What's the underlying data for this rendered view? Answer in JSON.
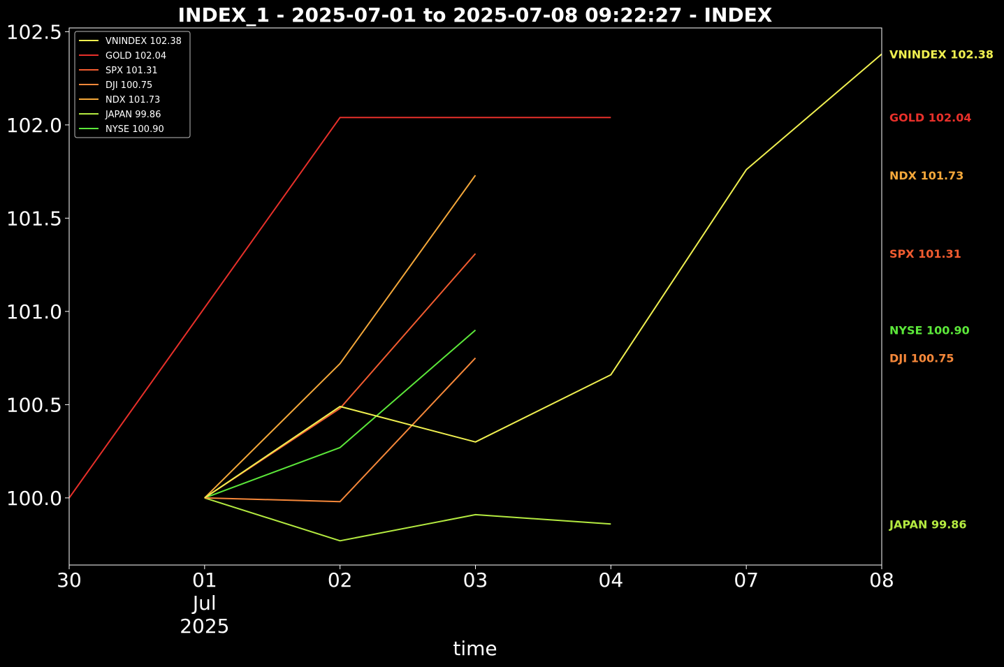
{
  "chart_data": {
    "type": "line",
    "title": "INDEX_1 - 2025-07-01 to 2025-07-08 09:22:27 - INDEX",
    "xlabel": "time",
    "ylabel": "",
    "x": [
      "2025-06-30",
      "2025-07-01",
      "2025-07-02",
      "2025-07-03",
      "2025-07-04",
      "2025-07-07",
      "2025-07-08"
    ],
    "x_tick_labels": [
      {
        "lines": [
          "30"
        ]
      },
      {
        "lines": [
          "01",
          "Jul",
          "2025"
        ]
      },
      {
        "lines": [
          "02"
        ]
      },
      {
        "lines": [
          "03"
        ]
      },
      {
        "lines": [
          "04"
        ]
      },
      {
        "lines": [
          "07"
        ]
      },
      {
        "lines": [
          "08"
        ]
      }
    ],
    "ylim": [
      99.64,
      102.52
    ],
    "y_ticks": [
      100.0,
      100.5,
      101.0,
      101.5,
      102.0,
      102.5
    ],
    "y_tick_labels": [
      "100.0",
      "100.5",
      "101.0",
      "101.5",
      "102.0",
      "102.5"
    ],
    "grid": false,
    "legend_placement": "top-left",
    "background": "#000000",
    "series": [
      {
        "name": "VNINDEX",
        "legend": "VNINDEX 102.38",
        "end_label": "VNINDEX 102.38",
        "color": "#f0f050",
        "values": [
          null,
          100.0,
          100.49,
          100.3,
          100.66,
          101.76,
          102.38
        ]
      },
      {
        "name": "GOLD",
        "legend": "GOLD 102.04",
        "end_label": "GOLD 102.04",
        "color": "#e8302a",
        "values": [
          100.0,
          null,
          102.04,
          null,
          102.04,
          null,
          null
        ]
      },
      {
        "name": "SPX",
        "legend": "SPX 101.31",
        "end_label": "SPX 101.31",
        "color": "#f25c30",
        "values": [
          null,
          100.0,
          100.48,
          101.31,
          null,
          null,
          null
        ]
      },
      {
        "name": "DJI",
        "legend": "DJI 100.75",
        "end_label": "DJI 100.75",
        "color": "#f6883a",
        "values": [
          null,
          100.0,
          99.98,
          100.75,
          null,
          null,
          null
        ]
      },
      {
        "name": "NDX",
        "legend": "NDX 101.73",
        "end_label": "NDX 101.73",
        "color": "#f5a83a",
        "values": [
          null,
          100.0,
          100.72,
          101.73,
          null,
          null,
          null
        ]
      },
      {
        "name": "JAPAN",
        "legend": "JAPAN 99.86",
        "end_label": "JAPAN 99.86",
        "color": "#b4ea40",
        "values": [
          null,
          100.0,
          99.77,
          99.91,
          99.86,
          null,
          null
        ]
      },
      {
        "name": "NYSE",
        "legend": "NYSE 100.90",
        "end_label": "NYSE 100.90",
        "color": "#5ce83a",
        "values": [
          null,
          100.0,
          100.27,
          100.9,
          null,
          null,
          null
        ]
      }
    ],
    "end_label_order": [
      "VNINDEX",
      "GOLD",
      "NDX",
      "SPX",
      "NYSE",
      "DJI",
      "JAPAN"
    ]
  }
}
